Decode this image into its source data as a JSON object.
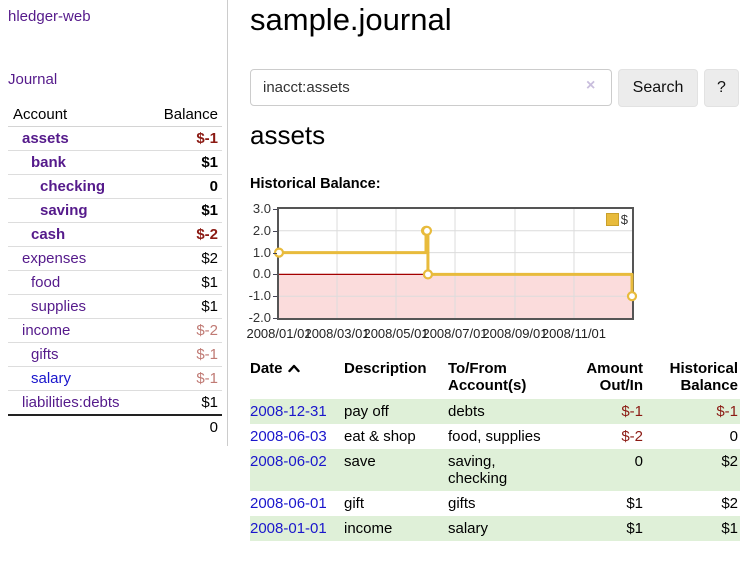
{
  "sidebar": {
    "brand": "hledger-web",
    "journal_link": "Journal",
    "accounts_table": {
      "headers": {
        "account": "Account",
        "balance": "Balance"
      },
      "rows": [
        {
          "name": "assets",
          "indent": 1,
          "bold": true,
          "balance": "$-1",
          "balance_style": "neg-strong",
          "link_style": "visited"
        },
        {
          "name": "bank",
          "indent": 2,
          "bold": true,
          "balance": "$1",
          "balance_style": "pos",
          "link_style": "visited"
        },
        {
          "name": "checking",
          "indent": 3,
          "bold": true,
          "balance": "0",
          "balance_style": "pos",
          "link_style": "visited"
        },
        {
          "name": "saving",
          "indent": 3,
          "bold": true,
          "balance": "$1",
          "balance_style": "pos",
          "link_style": "visited"
        },
        {
          "name": "cash",
          "indent": 2,
          "bold": true,
          "balance": "$-2",
          "balance_style": "neg-strong",
          "link_style": "visited"
        },
        {
          "name": "expenses",
          "indent": 1,
          "bold": false,
          "balance": "$2",
          "balance_style": "pos",
          "link_style": "visited"
        },
        {
          "name": "food",
          "indent": 2,
          "bold": false,
          "balance": "$1",
          "balance_style": "pos",
          "link_style": "visited"
        },
        {
          "name": "supplies",
          "indent": 2,
          "bold": false,
          "balance": "$1",
          "balance_style": "pos",
          "link_style": "visited"
        },
        {
          "name": "income",
          "indent": 1,
          "bold": false,
          "balance": "$-2",
          "balance_style": "neg-soft",
          "link_style": "visited"
        },
        {
          "name": "gifts",
          "indent": 2,
          "bold": false,
          "balance": "$-1",
          "balance_style": "neg-soft",
          "link_style": "visited"
        },
        {
          "name": "salary",
          "indent": 2,
          "bold": false,
          "balance": "$-1",
          "balance_style": "neg-soft",
          "link_style": "unvisited"
        },
        {
          "name": "liabilities:debts",
          "indent": 1,
          "bold": false,
          "balance": "$1",
          "balance_style": "pos",
          "link_style": "visited"
        }
      ],
      "total": "0"
    }
  },
  "header": {
    "title": "sample.journal"
  },
  "search": {
    "value": "inacct:assets",
    "clear_icon": "×",
    "button_label": "Search",
    "help_label": "?"
  },
  "account_page": {
    "title": "assets",
    "chart_label": "Historical Balance:"
  },
  "chart_data": {
    "type": "line",
    "step": true,
    "series": [
      {
        "name": "$",
        "color": "#e8bb3c",
        "points": [
          [
            "2008-01-01",
            1
          ],
          [
            "2008-06-01",
            2
          ],
          [
            "2008-06-02",
            2
          ],
          [
            "2008-06-03",
            0
          ],
          [
            "2008-12-31",
            -1
          ]
        ]
      }
    ],
    "x_range": [
      "2008-01-01",
      "2008-12-31"
    ],
    "ylim": [
      -2,
      3
    ],
    "yticks": [
      "3.0",
      "2.0",
      "1.0",
      "0.0",
      "-1.0",
      "-2.0"
    ],
    "xticks": [
      "2008/01/01",
      "2008/03/01",
      "2008/05/01",
      "2008/07/01",
      "2008/09/01",
      "2008/11/01"
    ],
    "legend": {
      "label": "$",
      "position": "top-right"
    },
    "grid": true,
    "zero_line_color": "#a40000",
    "negative_region_color": "#fbdcdc",
    "gridline_color": "#dcdcdc"
  },
  "register_table": {
    "headers": {
      "date": "Date",
      "date_sort": "asc",
      "description": "Description",
      "accounts": "To/From Account(s)",
      "amount": "Amount Out/In",
      "balance": "Historical Balance"
    },
    "rows": [
      {
        "date": "2008-12-31",
        "description": "pay off",
        "accounts": "debts",
        "amount": "$-1",
        "amount_style": "neg-strong",
        "balance": "$-1",
        "balance_style": "neg-strong"
      },
      {
        "date": "2008-06-03",
        "description": "eat & shop",
        "accounts": "food, supplies",
        "amount": "$-2",
        "amount_style": "neg-strong",
        "balance": "0",
        "balance_style": "pos"
      },
      {
        "date": "2008-06-02",
        "description": "save",
        "accounts": "saving, checking",
        "amount": "0",
        "amount_style": "pos",
        "balance": "$2",
        "balance_style": "pos"
      },
      {
        "date": "2008-06-01",
        "description": "gift",
        "accounts": "gifts",
        "amount": "$1",
        "amount_style": "pos",
        "balance": "$2",
        "balance_style": "pos"
      },
      {
        "date": "2008-01-01",
        "description": "income",
        "accounts": "salary",
        "amount": "$1",
        "amount_style": "pos",
        "balance": "$1",
        "balance_style": "pos"
      }
    ]
  },
  "colors": {
    "link_visited": "#551a8b",
    "link_unvisited": "#1a16cc",
    "negative_strong": "#8b1a13",
    "negative_soft": "#c07a74",
    "row_highlight": "#dff0d8",
    "chart_line": "#e8bb3c"
  }
}
